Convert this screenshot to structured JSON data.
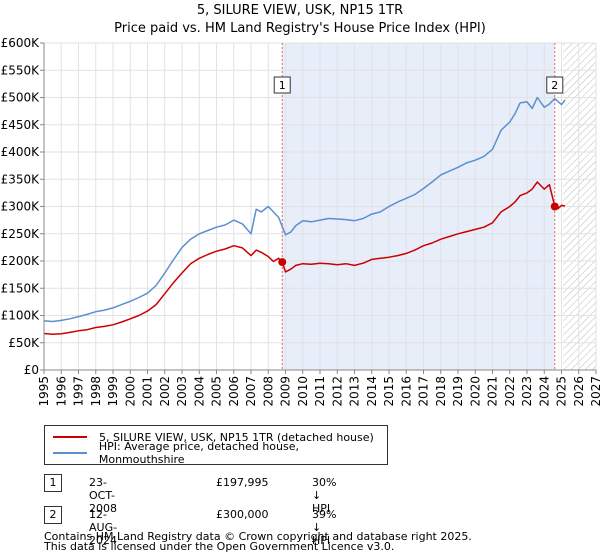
{
  "header": {
    "title": "5, SILURE VIEW, USK, NP15 1TR",
    "subtitle": "Price paid vs. HM Land Registry's House Price Index (HPI)"
  },
  "chart_data": {
    "type": "line",
    "title": "5, SILURE VIEW, USK, NP15 1TR",
    "subtitle": "Price paid vs. HM Land Registry's House Price Index (HPI)",
    "xlim": [
      1995,
      2027
    ],
    "ylim": [
      0,
      600000
    ],
    "x_ticks": [
      "1995",
      "1996",
      "1997",
      "1998",
      "1999",
      "2000",
      "2001",
      "2002",
      "2003",
      "2004",
      "2005",
      "2006",
      "2007",
      "2008",
      "2009",
      "2010",
      "2011",
      "2012",
      "2013",
      "2014",
      "2015",
      "2016",
      "2017",
      "2018",
      "2019",
      "2020",
      "2021",
      "2022",
      "2023",
      "2024",
      "2025",
      "2026",
      "2027"
    ],
    "y_ticks": [
      {
        "value": 0,
        "label": "£0"
      },
      {
        "value": 50000,
        "label": "£50K"
      },
      {
        "value": 100000,
        "label": "£100K"
      },
      {
        "value": 150000,
        "label": "£150K"
      },
      {
        "value": 200000,
        "label": "£200K"
      },
      {
        "value": 250000,
        "label": "£250K"
      },
      {
        "value": 300000,
        "label": "£300K"
      },
      {
        "value": 350000,
        "label": "£350K"
      },
      {
        "value": 400000,
        "label": "£400K"
      },
      {
        "value": 450000,
        "label": "£450K"
      },
      {
        "value": 500000,
        "label": "£500K"
      },
      {
        "value": 550000,
        "label": "£550K"
      },
      {
        "value": 600000,
        "label": "£600K"
      }
    ],
    "shaded_region": {
      "from": 2008.81,
      "to": 2024.61,
      "color": "#dde6f6"
    },
    "hatched_region": {
      "from": 2025.1,
      "to": 2027
    },
    "series": [
      {
        "name": "5, SILURE VIEW, USK, NP15 1TR (detached house)",
        "color": "#cc0000",
        "x": [
          1995,
          1995.5,
          1996,
          1996.5,
          1997,
          1997.5,
          1998,
          1998.5,
          1999,
          1999.5,
          2000,
          2000.5,
          2001,
          2001.5,
          2002,
          2002.5,
          2003,
          2003.5,
          2004,
          2004.5,
          2005,
          2005.5,
          2006,
          2006.5,
          2007,
          2007.3,
          2007.6,
          2008,
          2008.3,
          2008.6,
          2008.81,
          2009,
          2009.3,
          2009.6,
          2010,
          2010.5,
          2011,
          2011.5,
          2012,
          2012.5,
          2013,
          2013.5,
          2014,
          2014.5,
          2015,
          2015.5,
          2016,
          2016.5,
          2017,
          2017.5,
          2018,
          2018.5,
          2019,
          2019.5,
          2020,
          2020.5,
          2021,
          2021.5,
          2022,
          2022.3,
          2022.6,
          2023,
          2023.3,
          2023.6,
          2024,
          2024.3,
          2024.61,
          2024.8,
          2025,
          2025.2
        ],
        "values": [
          67000,
          65500,
          66500,
          69000,
          72000,
          74000,
          78000,
          80000,
          83000,
          88000,
          94000,
          100000,
          108000,
          120000,
          140000,
          160000,
          178000,
          195000,
          205000,
          212000,
          218000,
          222000,
          228000,
          224000,
          210000,
          220000,
          216000,
          208000,
          199000,
          205000,
          197995,
          180000,
          185000,
          192000,
          195000,
          194000,
          196000,
          195000,
          193000,
          195000,
          192000,
          196000,
          203000,
          205000,
          207000,
          210000,
          214000,
          220000,
          228000,
          233000,
          240000,
          245000,
          250000,
          254000,
          258000,
          262000,
          270000,
          290000,
          300000,
          308000,
          320000,
          325000,
          332000,
          345000,
          332000,
          340000,
          300000,
          296000,
          302000,
          301000
        ]
      },
      {
        "name": "HPI: Average price, detached house, Monmouthshire",
        "color": "#5b8fd0",
        "x": [
          1995,
          1995.5,
          1996,
          1996.5,
          1997,
          1997.5,
          1998,
          1998.5,
          1999,
          1999.5,
          2000,
          2000.5,
          2001,
          2001.5,
          2002,
          2002.5,
          2003,
          2003.5,
          2004,
          2004.5,
          2005,
          2005.5,
          2006,
          2006.5,
          2007,
          2007.3,
          2007.6,
          2008,
          2008.3,
          2008.6,
          2009,
          2009.3,
          2009.6,
          2010,
          2010.5,
          2011,
          2011.5,
          2012,
          2012.5,
          2013,
          2013.5,
          2014,
          2014.5,
          2015,
          2015.5,
          2016,
          2016.5,
          2017,
          2017.5,
          2018,
          2018.5,
          2019,
          2019.5,
          2020,
          2020.5,
          2021,
          2021.5,
          2022,
          2022.3,
          2022.6,
          2023,
          2023.3,
          2023.6,
          2024,
          2024.3,
          2024.6,
          2025,
          2025.2
        ],
        "values": [
          90000,
          89000,
          91000,
          94000,
          98000,
          102000,
          107000,
          110000,
          114000,
          120000,
          126000,
          133000,
          141000,
          155000,
          178000,
          202000,
          225000,
          240000,
          250000,
          256000,
          262000,
          266000,
          275000,
          268000,
          250000,
          295000,
          290000,
          300000,
          290000,
          280000,
          248000,
          253000,
          265000,
          274000,
          272000,
          275000,
          278000,
          277000,
          276000,
          274000,
          278000,
          286000,
          290000,
          300000,
          308000,
          315000,
          322000,
          333000,
          345000,
          358000,
          365000,
          372000,
          380000,
          385000,
          392000,
          405000,
          440000,
          455000,
          470000,
          490000,
          492000,
          480000,
          500000,
          482000,
          488000,
          498000,
          487000,
          495000
        ]
      }
    ],
    "annotations": [
      {
        "label": "1",
        "x": 2008.81,
        "y": 197995
      },
      {
        "label": "2",
        "x": 2024.61,
        "y": 300000
      }
    ],
    "legend_position": "bottom-left"
  },
  "legend": {
    "items": [
      {
        "label": "5, SILURE VIEW, USK, NP15 1TR (detached house)",
        "color": "#cc0000"
      },
      {
        "label": "HPI: Average price, detached house, Monmouthshire",
        "color": "#5b8fd0"
      }
    ]
  },
  "sales": [
    {
      "num": "1",
      "date": "23-OCT-2008",
      "price": "£197,995",
      "hpi": "30% ↓ HPI"
    },
    {
      "num": "2",
      "date": "12-AUG-2024",
      "price": "£300,000",
      "hpi": "39% ↓ HPI"
    }
  ],
  "footer": {
    "line1": "Contains HM Land Registry data © Crown copyright and database right 2025.",
    "line2": "This data is licensed under the Open Government Licence v3.0."
  }
}
